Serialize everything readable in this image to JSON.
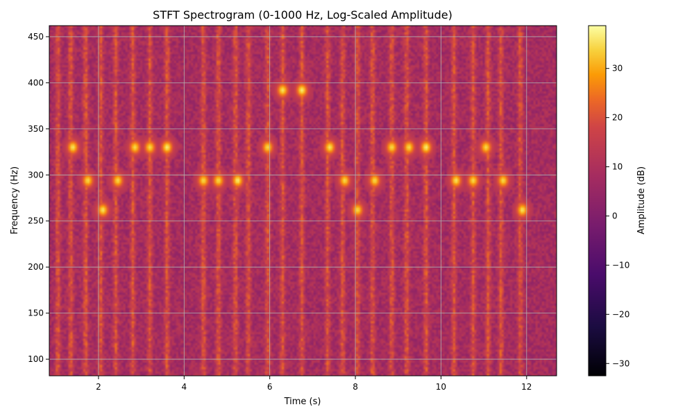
{
  "chart_data": {
    "type": "heatmap",
    "title": "STFT Spectrogram (0-1000 Hz, Log-Scaled Amplitude)",
    "xlabel": "Time (s)",
    "ylabel": "Frequency (Hz)",
    "colorbar_label": "Amplitude (dB)",
    "colormap": "inferno",
    "xlim": [
      0.85,
      12.7
    ],
    "ylim": [
      82,
      462
    ],
    "clim": [
      -32.5,
      38.7
    ],
    "x_ticks": [
      2,
      4,
      6,
      8,
      10,
      12
    ],
    "x_tick_labels": [
      "2",
      "4",
      "6",
      "8",
      "10",
      "12"
    ],
    "y_ticks": [
      100,
      150,
      200,
      250,
      300,
      350,
      400,
      450
    ],
    "y_tick_labels": [
      "100",
      "150",
      "200",
      "250",
      "300",
      "350",
      "400",
      "450"
    ],
    "colorbar_ticks": [
      -30,
      -20,
      -10,
      0,
      10,
      20,
      30
    ],
    "colorbar_tick_labels": [
      "−30",
      "−20",
      "−10",
      "0",
      "10",
      "20",
      "30"
    ],
    "grid": true,
    "background_level_db": 12,
    "stripe_times": [
      1.05,
      1.35,
      1.7,
      2.05,
      2.4,
      2.8,
      3.2,
      3.6,
      4.45,
      4.8,
      5.2,
      5.5,
      5.95,
      6.3,
      6.75,
      7.35,
      7.7,
      8.05,
      8.4,
      8.85,
      9.2,
      9.65,
      10.3,
      10.75,
      11.1,
      11.4,
      11.85
    ],
    "tones": [
      {
        "time": 1.4,
        "frequency": 330,
        "level_db": 36
      },
      {
        "time": 1.75,
        "frequency": 294,
        "level_db": 35
      },
      {
        "time": 2.1,
        "frequency": 262,
        "level_db": 36
      },
      {
        "time": 2.45,
        "frequency": 294,
        "level_db": 35
      },
      {
        "time": 2.85,
        "frequency": 330,
        "level_db": 35
      },
      {
        "time": 3.2,
        "frequency": 330,
        "level_db": 35
      },
      {
        "time": 3.6,
        "frequency": 330,
        "level_db": 37
      },
      {
        "time": 4.45,
        "frequency": 294,
        "level_db": 35
      },
      {
        "time": 4.8,
        "frequency": 294,
        "level_db": 35
      },
      {
        "time": 5.25,
        "frequency": 294,
        "level_db": 37
      },
      {
        "time": 5.95,
        "frequency": 330,
        "level_db": 35
      },
      {
        "time": 6.3,
        "frequency": 392,
        "level_db": 36
      },
      {
        "time": 6.75,
        "frequency": 392,
        "level_db": 37
      },
      {
        "time": 7.4,
        "frequency": 330,
        "level_db": 36
      },
      {
        "time": 7.75,
        "frequency": 294,
        "level_db": 35
      },
      {
        "time": 8.05,
        "frequency": 262,
        "level_db": 35
      },
      {
        "time": 8.45,
        "frequency": 294,
        "level_db": 35
      },
      {
        "time": 8.85,
        "frequency": 330,
        "level_db": 35
      },
      {
        "time": 9.25,
        "frequency": 330,
        "level_db": 35
      },
      {
        "time": 9.65,
        "frequency": 330,
        "level_db": 37
      },
      {
        "time": 10.35,
        "frequency": 294,
        "level_db": 36
      },
      {
        "time": 10.75,
        "frequency": 294,
        "level_db": 35
      },
      {
        "time": 11.05,
        "frequency": 330,
        "level_db": 35
      },
      {
        "time": 11.45,
        "frequency": 294,
        "level_db": 35
      },
      {
        "time": 11.9,
        "frequency": 262,
        "level_db": 36
      }
    ]
  }
}
